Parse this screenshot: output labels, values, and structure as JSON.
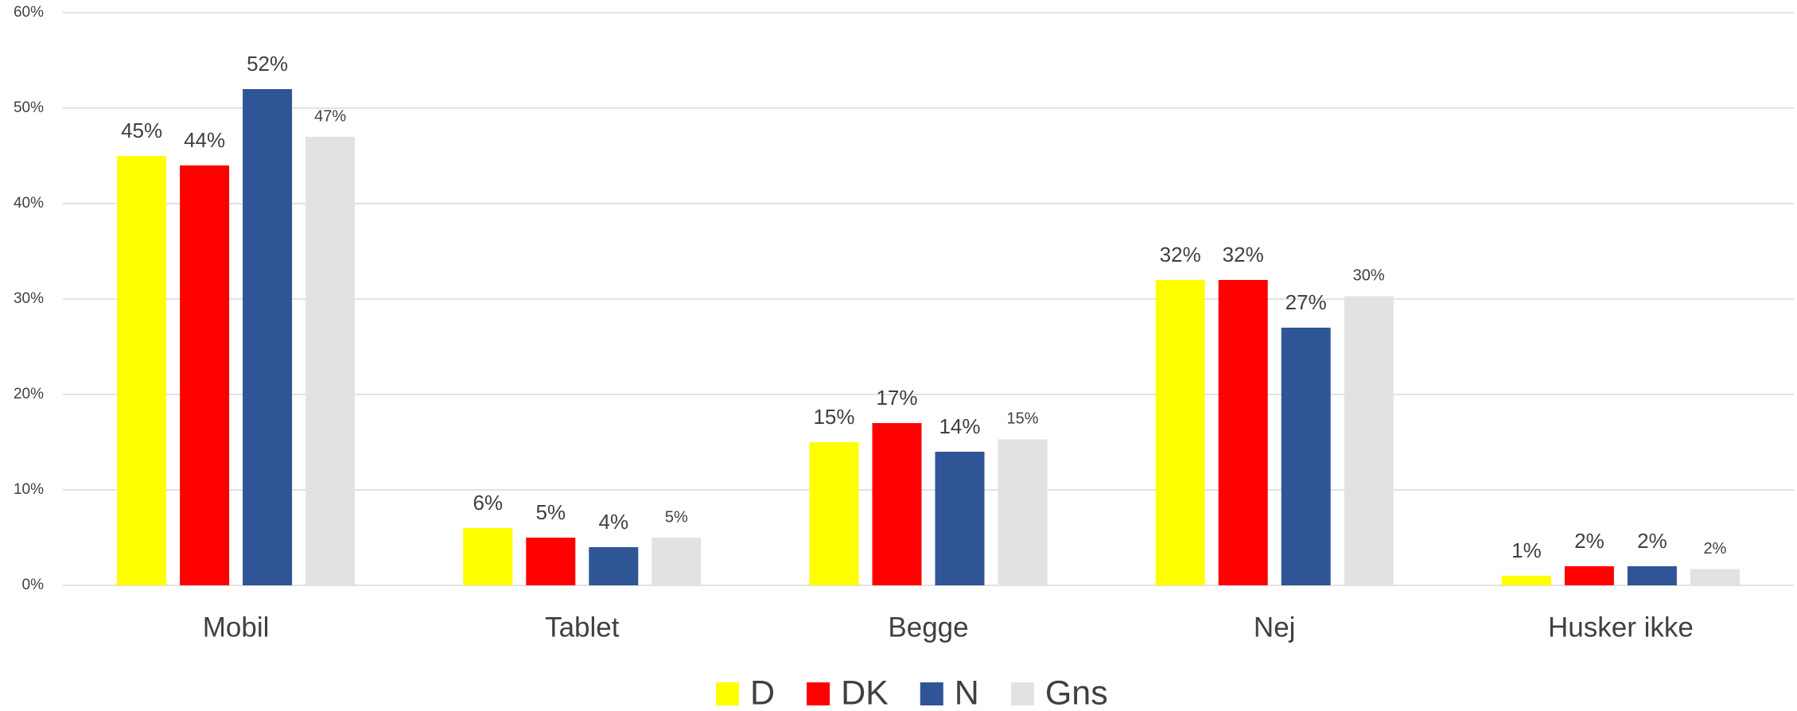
{
  "chart_data": {
    "type": "bar",
    "categories": [
      "Mobil",
      "Tablet",
      "Begge",
      "Nej",
      "Husker ikke"
    ],
    "series": [
      {
        "name": "D",
        "color": "#ffff00",
        "values": [
          45,
          6,
          15,
          32,
          1
        ],
        "value_labels": [
          "45%",
          "6%",
          "15%",
          "32%",
          "1%"
        ]
      },
      {
        "name": "DK",
        "color": "#ff0000",
        "values": [
          44,
          5,
          17,
          32,
          2
        ],
        "value_labels": [
          "44%",
          "5%",
          "17%",
          "32%",
          "2%"
        ]
      },
      {
        "name": "N",
        "color": "#2f5597",
        "values": [
          52,
          4,
          14,
          27,
          2
        ],
        "value_labels": [
          "52%",
          "4%",
          "14%",
          "27%",
          "2%"
        ]
      },
      {
        "name": "Gns",
        "color": "#e2e2e2",
        "values": [
          47,
          5,
          15.3,
          30.3,
          1.7
        ],
        "value_labels": [
          "47%",
          "5%",
          "15%",
          "30%",
          "2%"
        ]
      }
    ],
    "ylim": [
      0,
      60
    ],
    "yticks": [
      {
        "value": 0,
        "label": "0%"
      },
      {
        "value": 10,
        "label": "10%"
      },
      {
        "value": 20,
        "label": "20%"
      },
      {
        "value": 30,
        "label": "30%"
      },
      {
        "value": 40,
        "label": "40%"
      },
      {
        "value": 50,
        "label": "50%"
      },
      {
        "value": 60,
        "label": "60%"
      }
    ],
    "grid": true,
    "legend": "bottom"
  }
}
